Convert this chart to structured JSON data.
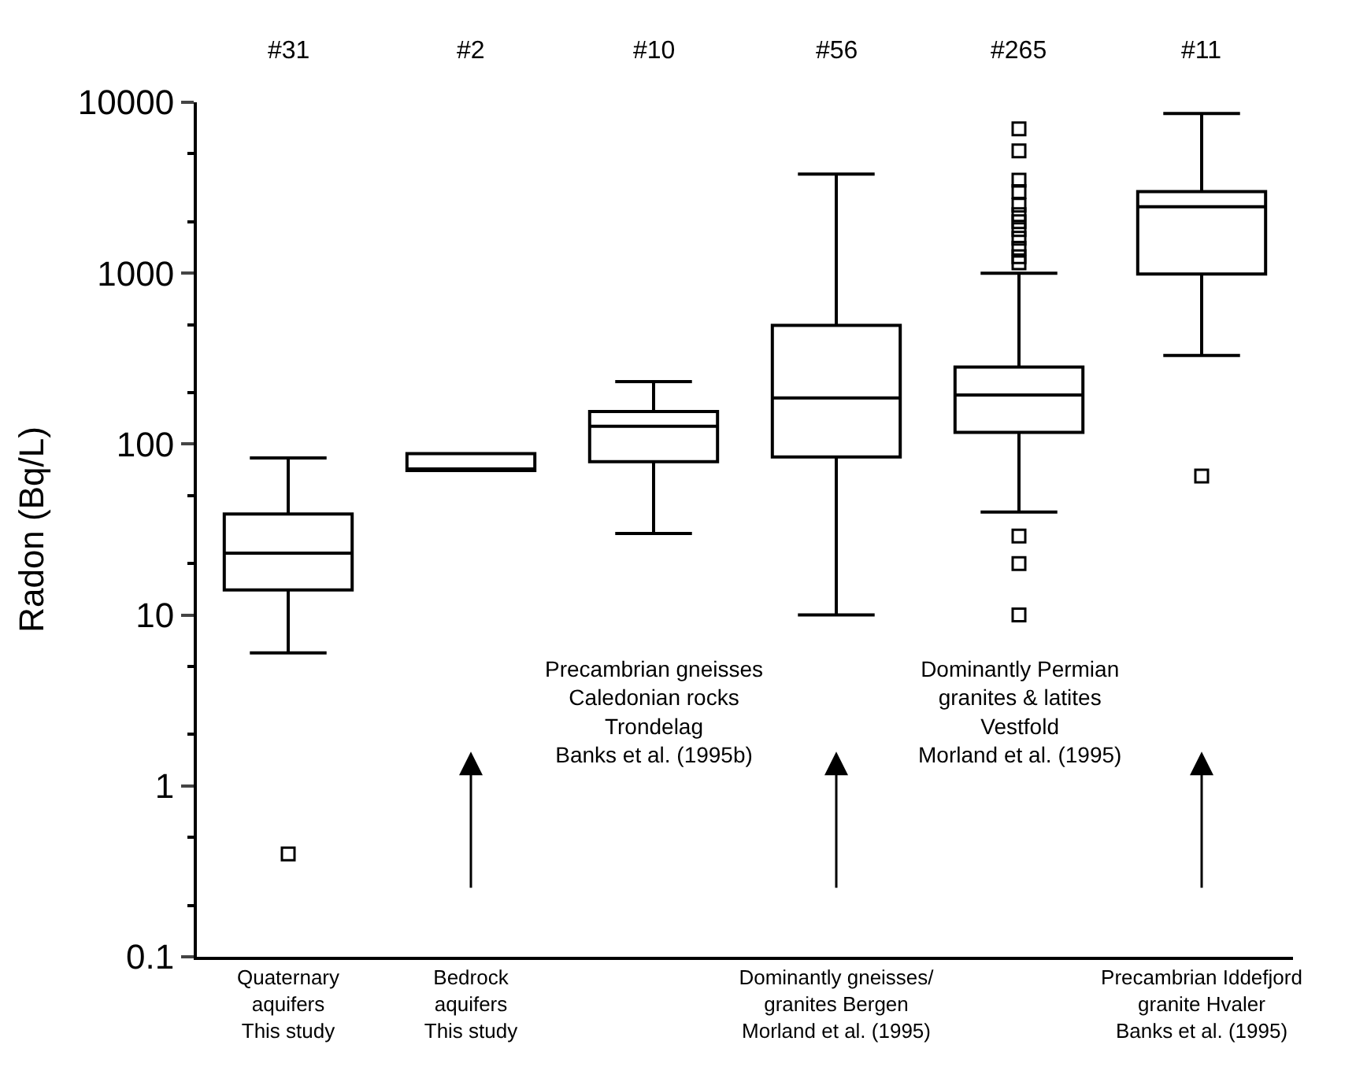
{
  "chart_data": {
    "type": "box",
    "ylabel": "Radon (Bq/L)",
    "categories": [
      "Quaternary\naquifers\nThis study",
      "Bedrock\naquifers\nThis study",
      null,
      "Dominantly gneisses/\ngranites Bergen\nMorland et al. (1995)",
      null,
      "Precambrian Iddefjord\ngranite Hvaler\nBanks et al. (1995)"
    ],
    "color": "#000000",
    "boxes": [
      {
        "low": 6,
        "q1": 14,
        "median": 23,
        "q3": 39,
        "high": 83,
        "outliers": [
          0.4
        ]
      },
      {
        "low": 70,
        "q1": 70,
        "median": 70,
        "q3": 88,
        "high": 88
      },
      {
        "low": 30,
        "q1": 79,
        "median": 127,
        "q3": 155,
        "high": 232
      },
      {
        "low": 10,
        "q1": 84,
        "median": 186,
        "q3": 495,
        "high": 3800
      },
      {
        "low": 40,
        "q1": 117,
        "median": 194,
        "q3": 282,
        "high": 1000,
        "outliers": [
          10,
          20,
          29,
          1150,
          1250,
          1400,
          1600,
          1800,
          2000,
          2200,
          2500,
          3000,
          3500,
          5200,
          7000
        ]
      },
      {
        "low": 330,
        "q1": 990,
        "median": 2450,
        "q3": 3000,
        "high": 8600,
        "outliers": [
          65
        ]
      }
    ],
    "log": true,
    "ylim": [
      0.1,
      10000
    ],
    "yticks": [
      0.1,
      1,
      10,
      100,
      1000,
      10000
    ],
    "marker": "square",
    "annotations": [
      "#31",
      "#2",
      "#10",
      "#56",
      "#265",
      "#11",
      "Precambrian gneisses\nCaledonian rocks\nTrondelag\nBanks et al. (1995b)",
      "Dominantly Permian\ngranites & latites\nVestfold\nMorland et al. (1995)"
    ]
  }
}
